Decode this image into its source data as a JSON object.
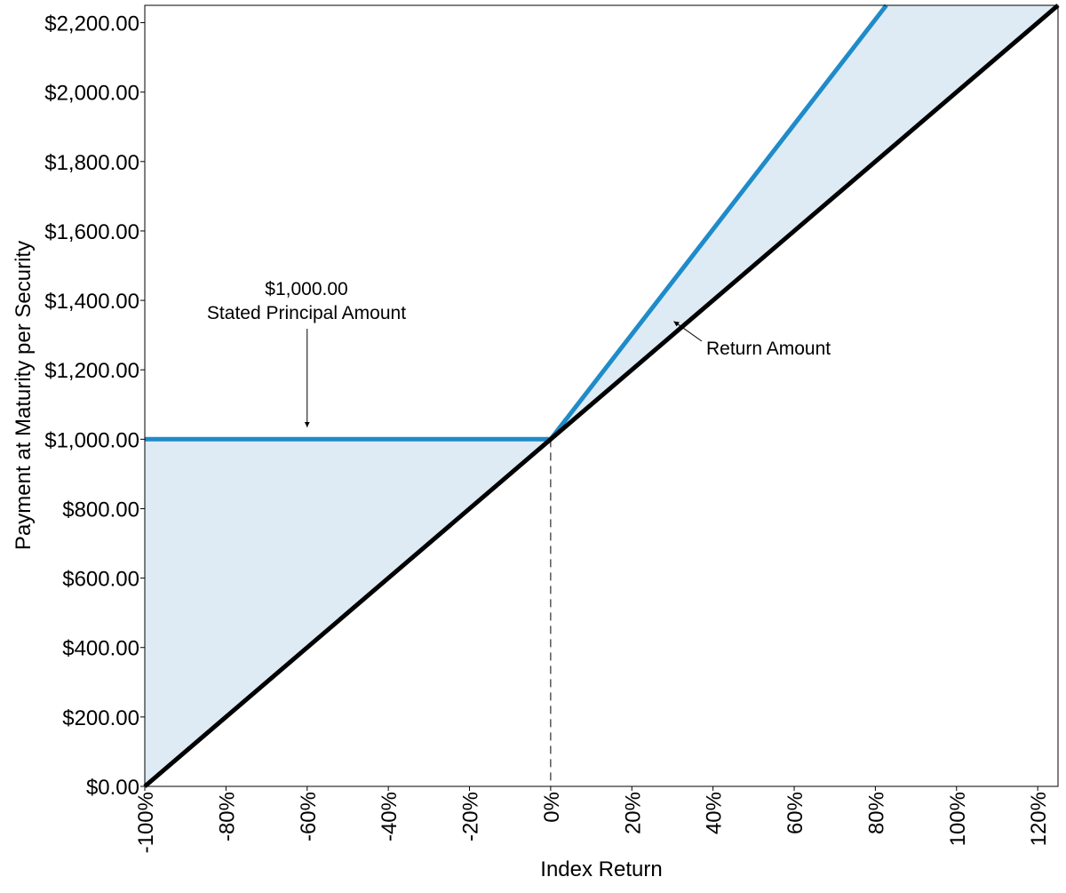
{
  "chart_data": {
    "type": "line",
    "title": "",
    "xlabel": "Index Return",
    "ylabel": "Payment at Maturity per Security",
    "xlim": [
      -100,
      125
    ],
    "ylim": [
      0,
      2250
    ],
    "x_ticks": [
      -100,
      -80,
      -60,
      -40,
      -20,
      0,
      20,
      40,
      60,
      80,
      100,
      120
    ],
    "x_tick_labels": [
      "-100%",
      "-80%",
      "-60%",
      "-40%",
      "-20%",
      "0%",
      "20%",
      "40%",
      "60%",
      "80%",
      "100%",
      "120%"
    ],
    "y_ticks": [
      0,
      200,
      400,
      600,
      800,
      1000,
      1200,
      1400,
      1600,
      1800,
      2000,
      2200
    ],
    "y_tick_labels": [
      "$0.00",
      "$200.00",
      "$400.00",
      "$600.00",
      "$800.00",
      "$1,000.00",
      "$1,200.00",
      "$1,400.00",
      "$1,600.00",
      "$1,800.00",
      "$2,000.00",
      "$2,200.00"
    ],
    "grid": false,
    "series": [
      {
        "color": "#1f8bc9",
        "points": [
          [
            -100,
            1000
          ],
          [
            0,
            1000
          ],
          [
            82.7,
            2250
          ]
        ]
      },
      {
        "color": "#000000",
        "points": [
          [
            -100,
            0
          ],
          [
            125,
            2250
          ]
        ]
      }
    ],
    "shaded_region": {
      "color": "#deebf5",
      "between": "payment and index performance"
    },
    "reference_line": {
      "x": 0,
      "y_from": 0,
      "y_to": 1000,
      "style": "dashed"
    },
    "annotations": [
      {
        "text_lines": [
          "$1,000.00",
          "Stated Principal Amount"
        ],
        "arrow_to": [
          -60,
          1050
        ]
      },
      {
        "text": "Return Amount",
        "arrow_to": [
          29,
          1350
        ]
      }
    ]
  }
}
